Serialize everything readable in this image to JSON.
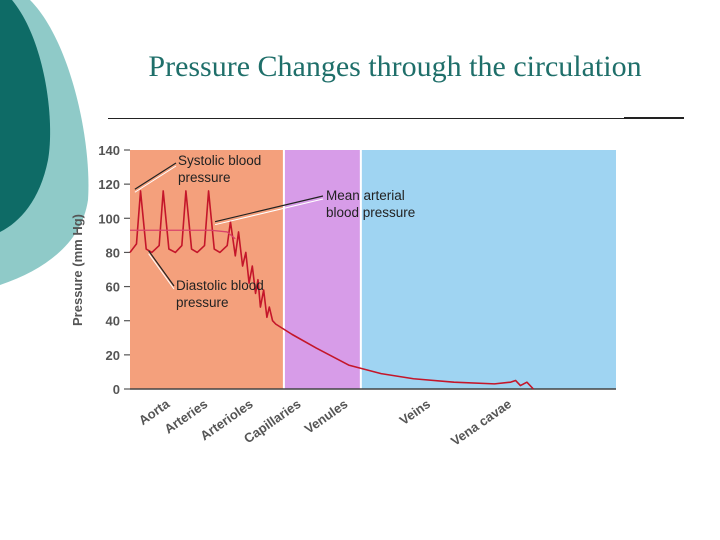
{
  "slide": {
    "title": "Pressure Changes through the circulation"
  },
  "colors": {
    "teal_dark": "#0e6b66",
    "teal_light": "#8fcac8",
    "accent_text": "#1f6f6a"
  },
  "chart_data": {
    "type": "line",
    "title": "Pressure Changes through the circulation",
    "xlabel": "",
    "ylabel": "Pressure (mm Hg)",
    "ylim": [
      0,
      140
    ],
    "yticks": [
      0,
      20,
      40,
      60,
      80,
      100,
      120,
      140
    ],
    "regions": [
      {
        "label": "Aorta",
        "start": 0,
        "end": 1.9,
        "color": "#f4a07c"
      },
      {
        "label": "Arteries",
        "start": 0,
        "end": 1.9,
        "color": "#f4a07c"
      },
      {
        "label": "Arterioles",
        "start": 0,
        "end": 1.9,
        "color": "#f4a07c"
      },
      {
        "label": "Capillaries",
        "start": 1.9,
        "end": 2.85,
        "color": "#d79ce8"
      },
      {
        "label": "Venules",
        "start": 2.85,
        "end": 6.0,
        "color": "#9fd4f2"
      },
      {
        "label": "Veins",
        "start": 2.85,
        "end": 6.0,
        "color": "#8ccdf4"
      },
      {
        "label": "Vena cavae",
        "start": 2.85,
        "end": 6.0,
        "color": "#8ccdf4"
      }
    ],
    "categories": [
      "Aorta",
      "Arteries",
      "Arterioles",
      "Capillaries",
      "Venules",
      "Veins",
      "Vena cavae"
    ],
    "category_x": [
      0.13,
      0.6,
      1.16,
      1.75,
      2.33,
      3.35,
      4.35
    ],
    "series": [
      {
        "name": "Systolic/Diastolic blood pressure",
        "x": [
          0.0,
          0.08,
          0.13,
          0.2,
          0.27,
          0.36,
          0.41,
          0.48,
          0.56,
          0.64,
          0.69,
          0.76,
          0.83,
          0.92,
          0.97,
          1.04,
          1.11,
          1.2,
          1.24,
          1.3,
          1.34,
          1.39,
          1.43,
          1.47,
          1.51,
          1.55,
          1.58,
          1.61,
          1.65,
          1.69,
          1.72,
          1.76,
          1.8,
          2.0,
          2.3,
          2.7,
          3.1,
          3.5,
          4.0,
          4.5,
          4.7,
          4.76,
          4.82,
          4.9,
          4.98
        ],
        "values": [
          80,
          85,
          116,
          82,
          80,
          84,
          116,
          82,
          80,
          84,
          116,
          82,
          80,
          84,
          116,
          82,
          80,
          84,
          98,
          78,
          92,
          72,
          80,
          62,
          72,
          56,
          64,
          48,
          58,
          42,
          48,
          40,
          38,
          32,
          24,
          14,
          9,
          6,
          4,
          3,
          4,
          5,
          2,
          4,
          0
        ]
      },
      {
        "name": "Mean arterial blood pressure",
        "x": [
          0.0,
          0.5,
          1.0,
          1.2,
          1.3
        ],
        "values": [
          93,
          93,
          93,
          92,
          88
        ]
      }
    ],
    "annotations": [
      {
        "text_lines": [
          "Systolic blood",
          "pressure"
        ],
        "x": 0.1,
        "y": 116
      },
      {
        "text_lines": [
          "Mean arterial",
          "blood pressure"
        ],
        "x": 1.15,
        "y": 93
      },
      {
        "text_lines": [
          "Diastolic blood",
          "pressure"
        ],
        "x": 0.2,
        "y": 80
      }
    ],
    "grid": false,
    "legend": "none"
  }
}
